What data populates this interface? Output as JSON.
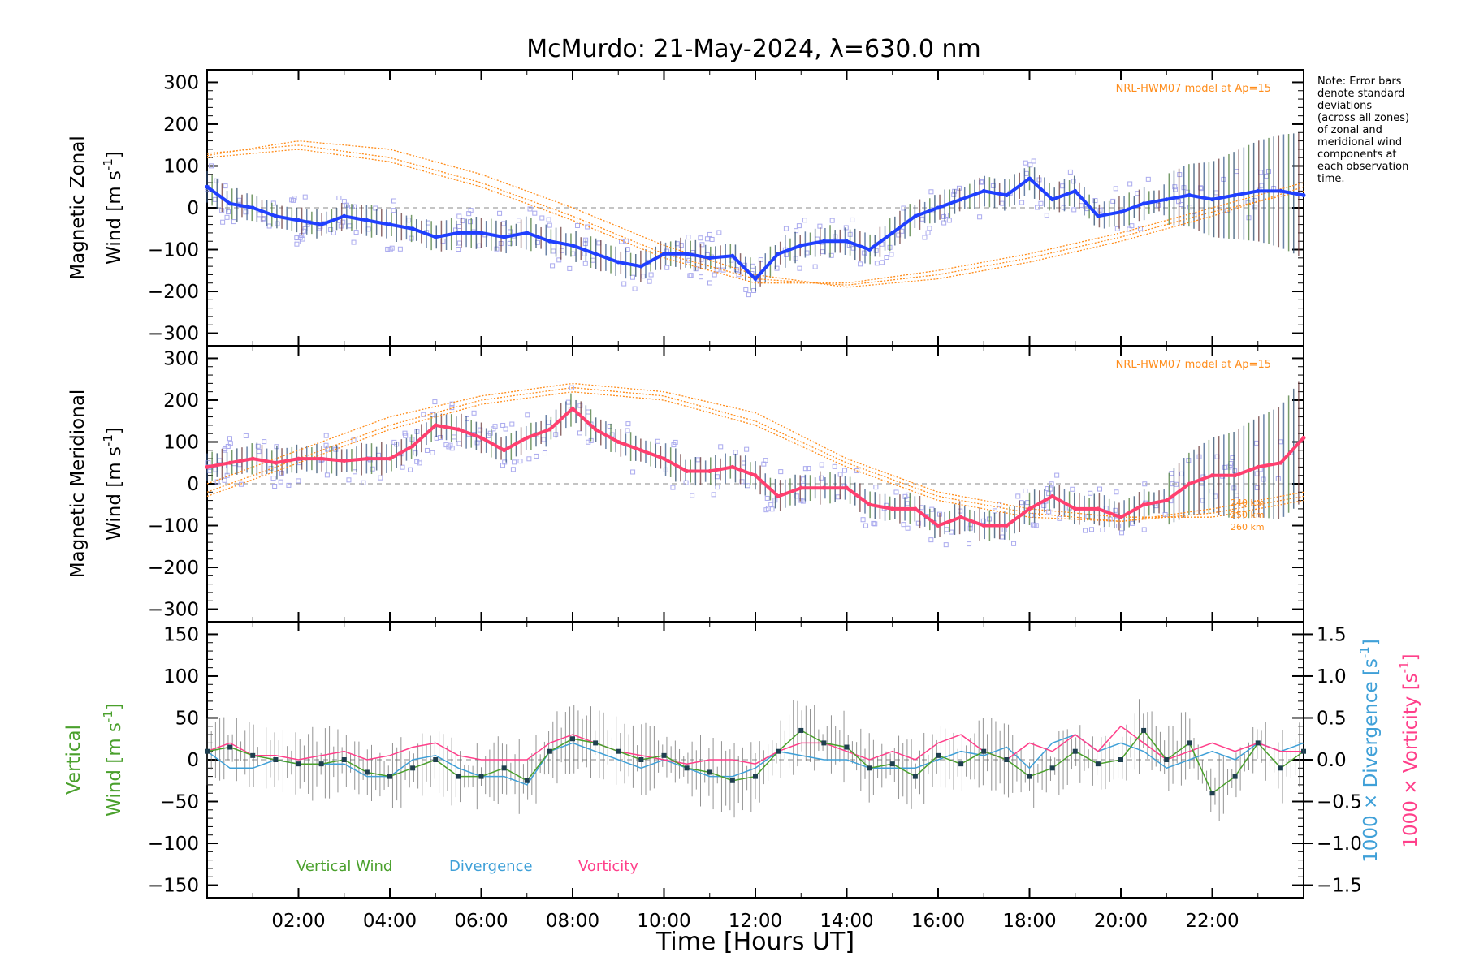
{
  "title": "McMurdo: 21-May-2024, λ=630.0 nm",
  "note_lines": [
    "Note: Error bars",
    "denote standard",
    "deviations",
    "(across all zones)",
    "of zonal and",
    "meridional wind",
    "components at",
    "each observation",
    "time."
  ],
  "colors": {
    "zonal": "#1f3fff",
    "meridional": "#ff3f6f",
    "model": "#ff8c1a",
    "scatter": "#aaaaee",
    "vertical": "#4aa02c",
    "divergence": "#3fa0d8",
    "vorticity": "#ff3f8a",
    "errbar": "#666666"
  },
  "chart_data": [
    {
      "type": "line",
      "panel": "zonal",
      "ylabel_line1": "Magnetic Zonal",
      "ylabel_line2": "Wind [m s",
      "ylabel_sup": "-1",
      "ylabel_end": "]",
      "xlim": [
        0,
        24
      ],
      "ylim": [
        -330,
        330
      ],
      "yticks": [
        "300",
        "200",
        "100",
        "0",
        "−100",
        "−200",
        "−300"
      ],
      "model_label": "NRL-HWM07 model at Ap=15",
      "model_curves": [
        {
          "x": [
            0,
            2,
            4,
            6,
            8,
            10,
            12,
            14,
            16,
            18,
            20,
            22,
            24
          ],
          "y": [
            130,
            150,
            120,
            60,
            -20,
            -110,
            -170,
            -185,
            -160,
            -120,
            -70,
            -10,
            40
          ]
        },
        {
          "x": [
            0,
            2,
            4,
            6,
            8,
            10,
            12,
            14,
            16,
            18,
            20,
            22,
            24
          ],
          "y": [
            125,
            160,
            140,
            80,
            0,
            -90,
            -160,
            -190,
            -170,
            -130,
            -80,
            -20,
            50
          ]
        },
        {
          "x": [
            0,
            2,
            4,
            6,
            8,
            10,
            12,
            14,
            16,
            18,
            20,
            22,
            24
          ],
          "y": [
            120,
            140,
            110,
            50,
            -30,
            -120,
            -180,
            -180,
            -150,
            -110,
            -60,
            0,
            60
          ]
        }
      ],
      "series": [
        {
          "name": "Zonal wind",
          "x": [
            0,
            0.5,
            1,
            1.5,
            2,
            2.5,
            3,
            3.5,
            4,
            4.5,
            5,
            5.5,
            6,
            6.5,
            7,
            7.5,
            8,
            8.5,
            9,
            9.5,
            10,
            10.5,
            11,
            11.5,
            12,
            12.5,
            13,
            13.5,
            14,
            14.5,
            15,
            15.5,
            16,
            16.5,
            17,
            17.5,
            18,
            18.5,
            19,
            19.5,
            20,
            20.5,
            21,
            21.5,
            22,
            22.5,
            23,
            23.5,
            24
          ],
          "y": [
            50,
            10,
            0,
            -20,
            -30,
            -40,
            -20,
            -30,
            -40,
            -50,
            -70,
            -60,
            -60,
            -70,
            -60,
            -80,
            -90,
            -110,
            -130,
            -140,
            -110,
            -110,
            -120,
            -115,
            -170,
            -110,
            -90,
            -80,
            -80,
            -100,
            -60,
            -20,
            0,
            20,
            40,
            30,
            70,
            20,
            40,
            -20,
            -10,
            10,
            20,
            30,
            20,
            30,
            40,
            40,
            30
          ]
        }
      ]
    },
    {
      "type": "line",
      "panel": "meridional",
      "ylabel_line1": "Magnetic Meridional",
      "ylabel_line2": "Wind [m s",
      "ylabel_sup": "-1",
      "ylabel_end": "]",
      "xlim": [
        0,
        24
      ],
      "ylim": [
        -330,
        330
      ],
      "yticks": [
        "300",
        "200",
        "100",
        "0",
        "−100",
        "−200",
        "−300"
      ],
      "model_label": "NRL-HWM07 model at Ap=15",
      "altitude_labels": [
        "240 km",
        "250 km",
        "260 km"
      ],
      "model_curves": [
        {
          "x": [
            0,
            2,
            4,
            6,
            8,
            10,
            12,
            14,
            16,
            18,
            20,
            22,
            24
          ],
          "y": [
            0,
            80,
            160,
            210,
            240,
            220,
            170,
            60,
            -20,
            -60,
            -80,
            -80,
            -40
          ]
        },
        {
          "x": [
            0,
            2,
            4,
            6,
            8,
            10,
            12,
            14,
            16,
            18,
            20,
            22,
            24
          ],
          "y": [
            -20,
            60,
            140,
            200,
            230,
            210,
            150,
            50,
            -30,
            -70,
            -90,
            -70,
            -30
          ]
        },
        {
          "x": [
            0,
            2,
            4,
            6,
            8,
            10,
            12,
            14,
            16,
            18,
            20,
            22,
            24
          ],
          "y": [
            -30,
            50,
            130,
            190,
            220,
            200,
            140,
            40,
            -40,
            -80,
            -90,
            -60,
            -20
          ]
        }
      ],
      "series": [
        {
          "name": "Meridional wind",
          "x": [
            0,
            0.5,
            1,
            1.5,
            2,
            2.5,
            3,
            3.5,
            4,
            4.5,
            5,
            5.5,
            6,
            6.5,
            7,
            7.5,
            8,
            8.5,
            9,
            9.5,
            10,
            10.5,
            11,
            11.5,
            12,
            12.5,
            13,
            13.5,
            14,
            14.5,
            15,
            15.5,
            16,
            16.5,
            17,
            17.5,
            18,
            18.5,
            19,
            19.5,
            20,
            20.5,
            21,
            21.5,
            22,
            22.5,
            23,
            23.5,
            24
          ],
          "y": [
            40,
            50,
            60,
            50,
            60,
            60,
            55,
            60,
            60,
            90,
            140,
            130,
            110,
            80,
            110,
            130,
            180,
            130,
            100,
            80,
            60,
            30,
            30,
            40,
            20,
            -30,
            -10,
            -10,
            -10,
            -50,
            -60,
            -60,
            -100,
            -80,
            -100,
            -100,
            -60,
            -30,
            -60,
            -60,
            -80,
            -50,
            -40,
            0,
            20,
            20,
            40,
            50,
            110
          ]
        }
      ]
    },
    {
      "type": "line",
      "panel": "vertical",
      "ylabel_line1": "Vertical",
      "ylabel_line2": "Wind [m s",
      "ylabel_sup": "-1",
      "ylabel_end": "]",
      "right_label1": "1000 × Divergence [s",
      "right_label2": "1000 × Vorticity [s",
      "right_sup": "-1",
      "right_end": "]",
      "xlim": [
        0,
        24
      ],
      "ylim": [
        -165,
        165
      ],
      "y2lim": [
        -1.65,
        1.65
      ],
      "yticks": [
        "150",
        "100",
        "50",
        "0",
        "−50",
        "−100",
        "−150"
      ],
      "y2ticks": [
        "1.5",
        "1.0",
        "0.5",
        "0.0",
        "−0.5",
        "−1.0",
        "−1.5"
      ],
      "xticks": [
        "02:00",
        "04:00",
        "06:00",
        "08:00",
        "10:00",
        "12:00",
        "14:00",
        "16:00",
        "18:00",
        "20:00",
        "22:00"
      ],
      "xlabel": "Time [Hours UT]",
      "legend": [
        "Vertical Wind",
        "Divergence",
        "Vorticity"
      ],
      "series": [
        {
          "name": "Vertical Wind",
          "x": [
            0,
            0.5,
            1,
            1.5,
            2,
            2.5,
            3,
            3.5,
            4,
            4.5,
            5,
            5.5,
            6,
            6.5,
            7,
            7.5,
            8,
            8.5,
            9,
            9.5,
            10,
            10.5,
            11,
            11.5,
            12,
            12.5,
            13,
            13.5,
            14,
            14.5,
            15,
            15.5,
            16,
            16.5,
            17,
            17.5,
            18,
            18.5,
            19,
            19.5,
            20,
            20.5,
            21,
            21.5,
            22,
            22.5,
            23,
            23.5,
            24
          ],
          "y": [
            10,
            15,
            5,
            0,
            -5,
            -5,
            0,
            -15,
            -20,
            -10,
            0,
            -20,
            -20,
            -10,
            -25,
            10,
            25,
            20,
            10,
            0,
            5,
            -10,
            -15,
            -25,
            -20,
            10,
            35,
            20,
            15,
            -10,
            -5,
            -20,
            5,
            -5,
            10,
            0,
            -20,
            -10,
            10,
            -5,
            0,
            35,
            0,
            20,
            -40,
            -20,
            20,
            -10,
            10
          ]
        },
        {
          "name": "Divergence",
          "x": [
            0,
            0.5,
            1,
            1.5,
            2,
            2.5,
            3,
            3.5,
            4,
            4.5,
            5,
            5.5,
            6,
            6.5,
            7,
            7.5,
            8,
            8.5,
            9,
            9.5,
            10,
            10.5,
            11,
            11.5,
            12,
            12.5,
            13,
            13.5,
            14,
            14.5,
            15,
            15.5,
            16,
            16.5,
            17,
            17.5,
            18,
            18.5,
            19,
            19.5,
            20,
            20.5,
            21,
            21.5,
            22,
            22.5,
            23,
            23.5,
            24
          ],
          "y": [
            0.1,
            -0.1,
            -0.1,
            0.0,
            -0.05,
            -0.05,
            -0.05,
            -0.2,
            -0.2,
            0.0,
            0.05,
            -0.1,
            -0.2,
            -0.2,
            -0.3,
            0.1,
            0.2,
            0.1,
            0.0,
            -0.1,
            0.0,
            -0.1,
            -0.2,
            -0.2,
            -0.1,
            0.1,
            0.05,
            0.0,
            0.0,
            -0.1,
            -0.1,
            -0.1,
            0.0,
            0.1,
            0.05,
            0.15,
            -0.1,
            0.2,
            0.3,
            0.1,
            0.2,
            0.1,
            -0.1,
            0.0,
            0.1,
            0.0,
            0.2,
            0.1,
            0.2
          ]
        },
        {
          "name": "Vorticity",
          "x": [
            0,
            0.5,
            1,
            1.5,
            2,
            2.5,
            3,
            3.5,
            4,
            4.5,
            5,
            5.5,
            6,
            6.5,
            7,
            7.5,
            8,
            8.5,
            9,
            9.5,
            10,
            10.5,
            11,
            11.5,
            12,
            12.5,
            13,
            13.5,
            14,
            14.5,
            15,
            15.5,
            16,
            16.5,
            17,
            17.5,
            18,
            18.5,
            19,
            19.5,
            20,
            20.5,
            21,
            21.5,
            22,
            22.5,
            23,
            23.5,
            24
          ],
          "y": [
            0.1,
            0.2,
            0.05,
            0.05,
            0.0,
            0.05,
            0.1,
            0.0,
            0.05,
            0.15,
            0.2,
            0.05,
            0.0,
            0.0,
            0.0,
            0.2,
            0.3,
            0.2,
            0.1,
            0.05,
            0.0,
            -0.05,
            0.0,
            0.0,
            -0.05,
            0.1,
            0.2,
            0.2,
            0.1,
            0.0,
            0.1,
            0.0,
            0.2,
            0.3,
            0.1,
            0.0,
            0.2,
            0.1,
            0.3,
            0.1,
            0.4,
            0.2,
            0.0,
            0.1,
            0.2,
            0.1,
            0.2,
            0.1,
            0.1
          ]
        }
      ]
    }
  ]
}
